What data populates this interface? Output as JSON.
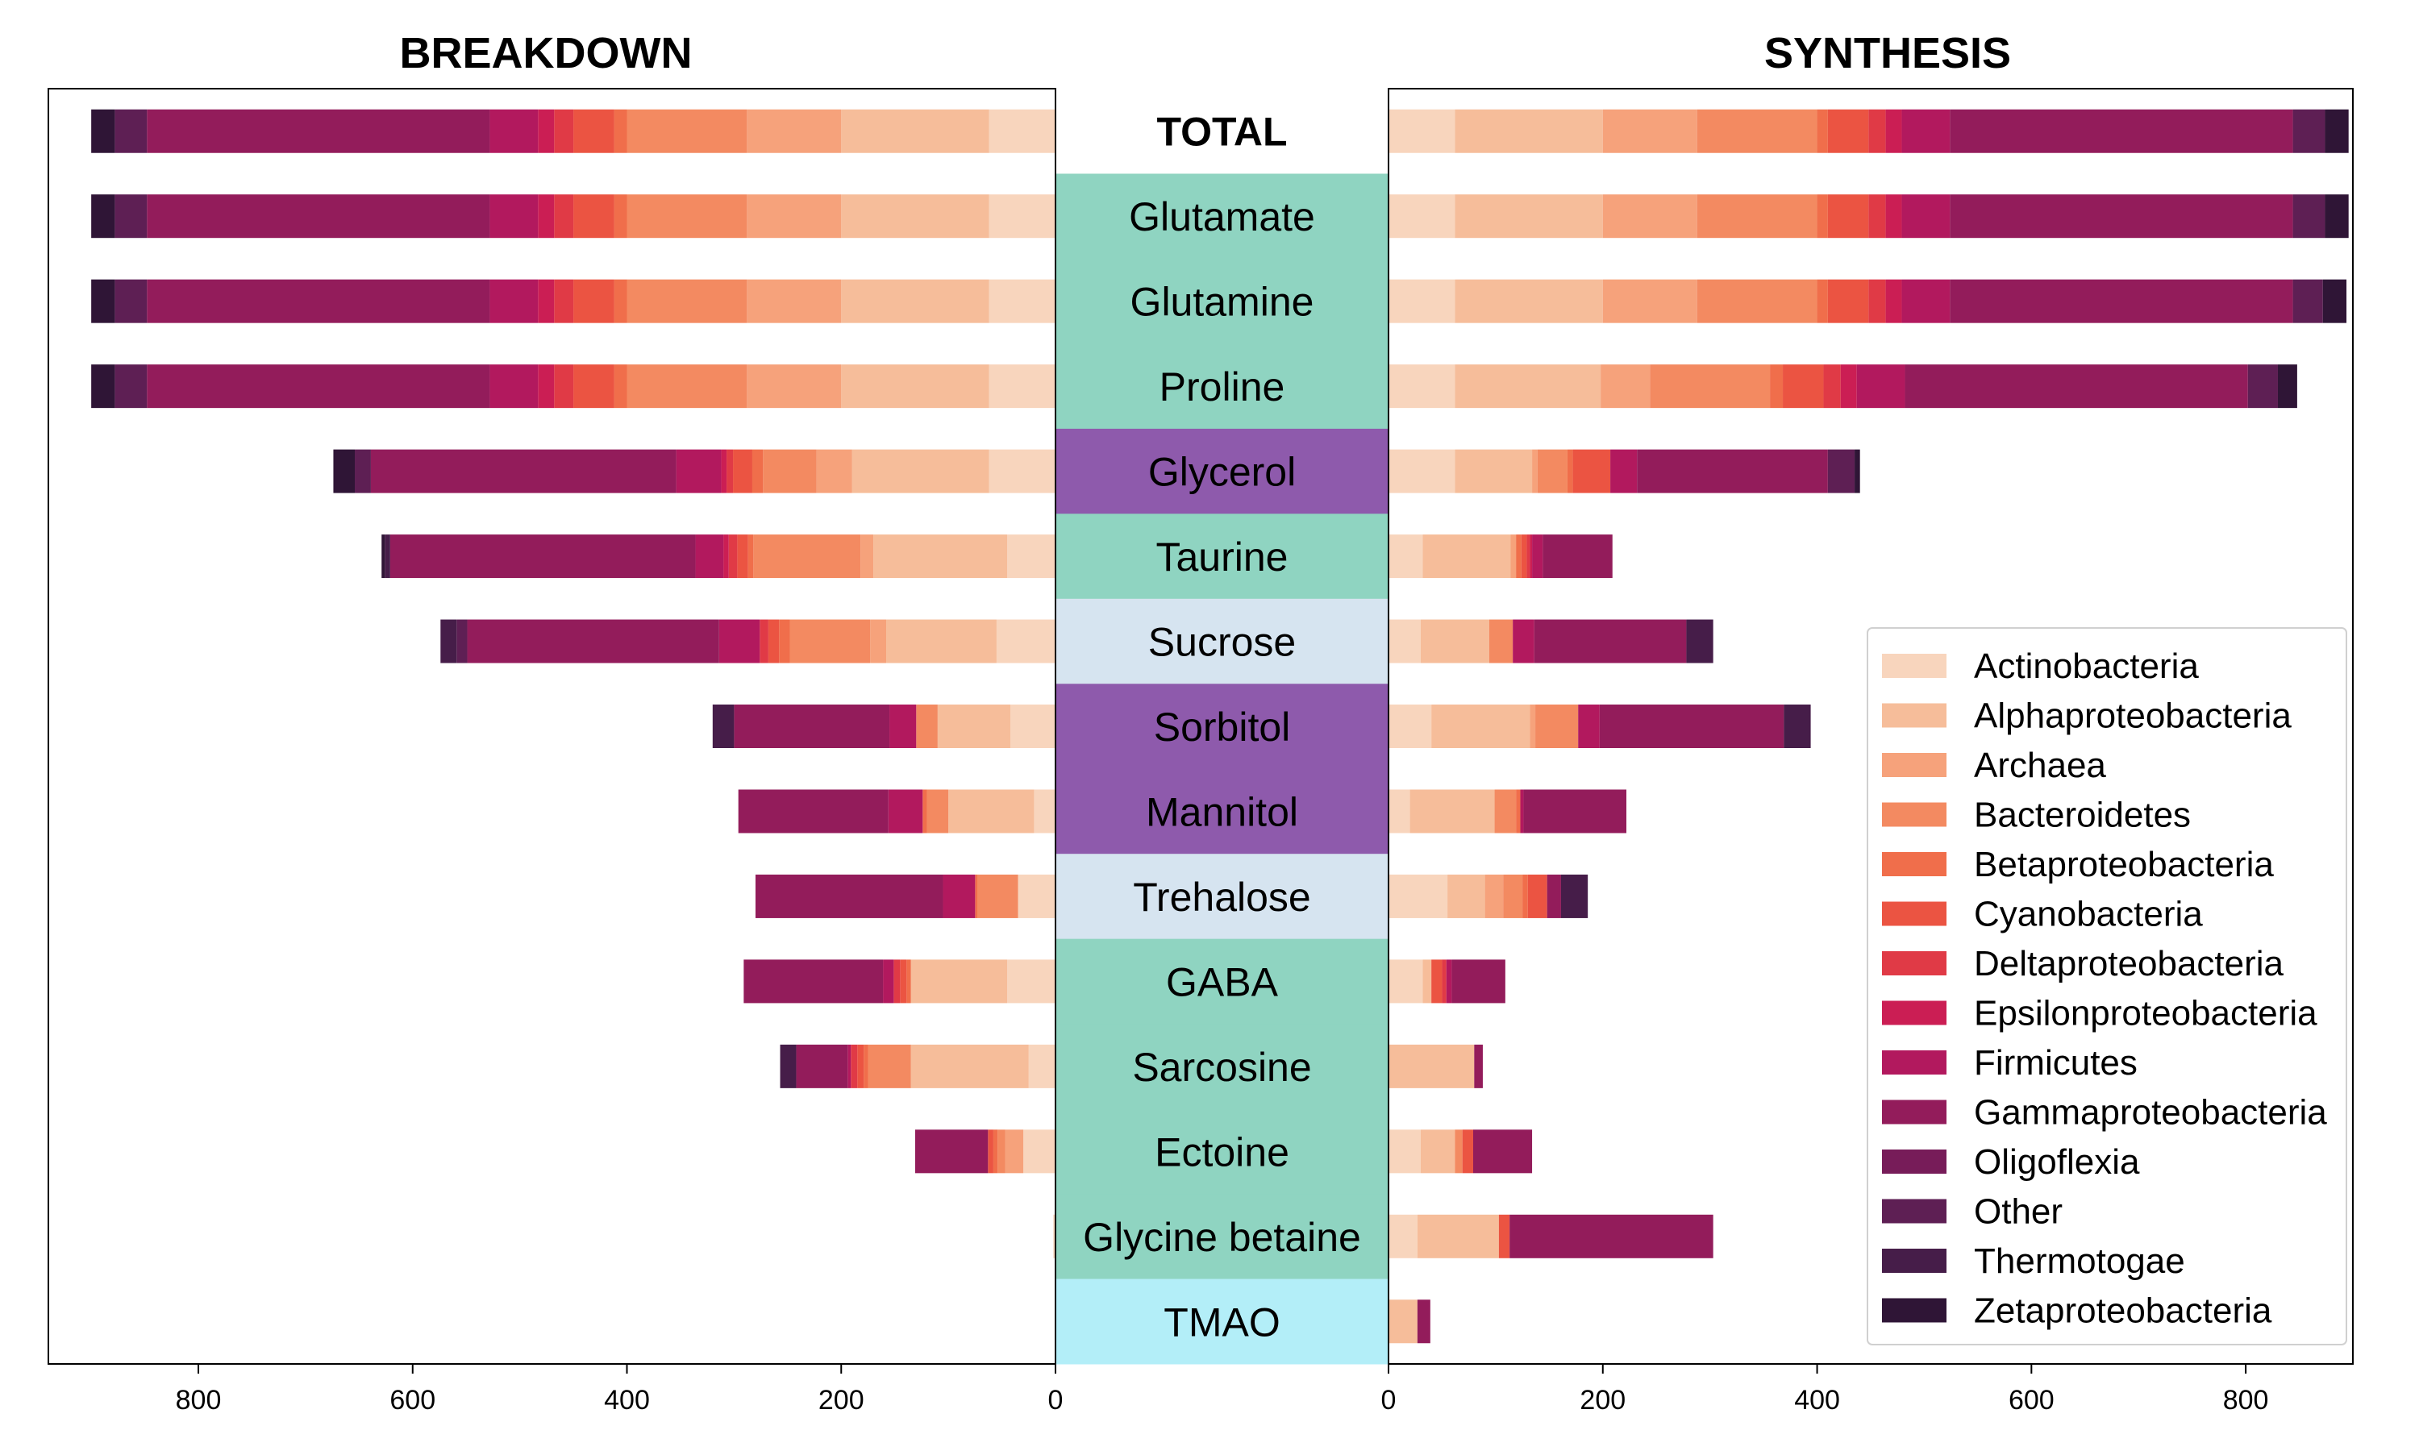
{
  "chart_data": {
    "type": "bar",
    "orientation": "horizontal-butterfly",
    "panels": [
      {
        "key": "breakdown",
        "title": "BREAKDOWN",
        "xlim": [
          940,
          0
        ],
        "xticks": [
          800,
          600,
          400,
          200,
          0
        ]
      },
      {
        "key": "synthesis",
        "title": "SYNTHESIS",
        "xlim": [
          0,
          900
        ],
        "xticks": [
          0,
          200,
          400,
          600,
          800
        ]
      }
    ],
    "categories": [
      "TOTAL",
      "Glutamate",
      "Glutamine",
      "Proline",
      "Glycerol",
      "Taurine",
      "Sucrose",
      "Sorbitol",
      "Mannitol",
      "Trehalose",
      "GABA",
      "Sarcosine",
      "Ectoine",
      "Glycine betaine",
      "TMAO"
    ],
    "category_colors": [
      "#ffffff",
      "#8fd4c1",
      "#8fd4c1",
      "#8fd4c1",
      "#8e5aac",
      "#8fd4c1",
      "#d6e4f0",
      "#8e5aac",
      "#8e5aac",
      "#d6e4f0",
      "#8fd4c1",
      "#8fd4c1",
      "#8fd4c1",
      "#8fd4c1",
      "#b3eef8"
    ],
    "taxa": [
      "Actinobacteria",
      "Alphaproteobacteria",
      "Archaea",
      "Bacteroidetes",
      "Betaproteobacteria",
      "Cyanobacteria",
      "Deltaproteobacteria",
      "Epsilonproteobacteria",
      "Firmicutes",
      "Gammaproteobacteria",
      "Oligoflexia",
      "Other",
      "Thermotogae",
      "Zetaproteobacteria"
    ],
    "taxa_colors": [
      "#f8d5bd",
      "#f6bd9a",
      "#f6a27b",
      "#f38a61",
      "#f06e4b",
      "#eb5442",
      "#e03a46",
      "#cb1e54",
      "#b2195e",
      "#931c5b",
      "#771c59",
      "#5e1f54",
      "#461d49",
      "#2f1536"
    ],
    "legend_position": "lower-right",
    "series": [
      {
        "name": "Actinobacteria",
        "breakdown": [
          62,
          62,
          62,
          62,
          62,
          45,
          55,
          42,
          20,
          35,
          45,
          25,
          30,
          2,
          0
        ],
        "synthesis": [
          62,
          62,
          62,
          62,
          62,
          32,
          30,
          40,
          20,
          55,
          32,
          0,
          30,
          27,
          0
        ]
      },
      {
        "name": "Alphaproteobacteria",
        "breakdown": [
          138,
          138,
          138,
          138,
          128,
          125,
          103,
          68,
          80,
          0,
          90,
          110,
          0,
          0,
          0
        ],
        "synthesis": [
          138,
          138,
          138,
          136,
          72,
          82,
          64,
          92,
          79,
          35,
          8,
          80,
          32,
          76,
          27
        ]
      },
      {
        "name": "Archaea",
        "breakdown": [
          88,
          88,
          88,
          88,
          33,
          12,
          15,
          0,
          0,
          0,
          0,
          0,
          17,
          0,
          0
        ],
        "synthesis": [
          88,
          88,
          88,
          46,
          5,
          5,
          0,
          5,
          0,
          17,
          0,
          0,
          0,
          0,
          0
        ]
      },
      {
        "name": "Bacteroidetes",
        "breakdown": [
          112,
          112,
          112,
          112,
          50,
          100,
          75,
          20,
          20,
          38,
          0,
          40,
          7,
          0,
          0
        ],
        "synthesis": [
          112,
          112,
          112,
          112,
          28,
          0,
          22,
          40,
          20,
          18,
          0,
          0,
          7,
          0,
          0
        ]
      },
      {
        "name": "Betaproteobacteria",
        "breakdown": [
          12,
          12,
          12,
          12,
          10,
          5,
          10,
          0,
          4,
          2,
          4,
          4,
          4,
          0,
          0
        ],
        "synthesis": [
          10,
          10,
          10,
          12,
          5,
          5,
          0,
          0,
          4,
          5,
          0,
          0,
          0,
          0,
          0
        ]
      },
      {
        "name": "Cyanobacteria",
        "breakdown": [
          38,
          38,
          38,
          38,
          18,
          10,
          10,
          0,
          0,
          0,
          6,
          6,
          5,
          0,
          0
        ],
        "synthesis": [
          38,
          38,
          38,
          38,
          35,
          5,
          0,
          0,
          0,
          18,
          10,
          0,
          10,
          10,
          0
        ]
      },
      {
        "name": "Deltaproteobacteria",
        "breakdown": [
          18,
          18,
          18,
          18,
          6,
          8,
          8,
          0,
          0,
          0,
          6,
          6,
          0,
          0,
          0
        ],
        "synthesis": [
          16,
          16,
          16,
          16,
          0,
          3,
          0,
          0,
          0,
          0,
          4,
          0,
          0,
          0,
          0
        ]
      },
      {
        "name": "Epsilonproteobacteria",
        "breakdown": [
          15,
          15,
          15,
          15,
          5,
          5,
          0,
          0,
          0,
          0,
          0,
          0,
          0,
          0,
          0
        ],
        "synthesis": [
          15,
          15,
          15,
          15,
          0,
          2,
          0,
          0,
          0,
          0,
          0,
          0,
          0,
          0,
          0
        ]
      },
      {
        "name": "Firmicutes",
        "breakdown": [
          45,
          45,
          45,
          45,
          42,
          26,
          38,
          25,
          32,
          30,
          10,
          3,
          0,
          0,
          0
        ],
        "synthesis": [
          45,
          45,
          45,
          45,
          25,
          10,
          20,
          20,
          3,
          0,
          5,
          0,
          0,
          0,
          0
        ]
      },
      {
        "name": "Gammaproteobacteria",
        "breakdown": [
          320,
          320,
          320,
          320,
          285,
          285,
          235,
          145,
          140,
          175,
          130,
          48,
          68,
          0,
          0
        ],
        "synthesis": [
          320,
          320,
          320,
          320,
          178,
          65,
          142,
          172,
          96,
          13,
          50,
          8,
          55,
          190,
          12
        ]
      },
      {
        "name": "Oligoflexia",
        "breakdown": [
          0,
          0,
          0,
          0,
          0,
          0,
          0,
          0,
          0,
          0,
          0,
          0,
          0,
          0,
          0
        ],
        "synthesis": [
          0,
          0,
          0,
          0,
          0,
          0,
          0,
          0,
          0,
          0,
          0,
          0,
          0,
          0,
          0
        ]
      },
      {
        "name": "Other",
        "breakdown": [
          30,
          30,
          30,
          30,
          15,
          0,
          10,
          0,
          0,
          0,
          0,
          0,
          0,
          0,
          0
        ],
        "synthesis": [
          30,
          30,
          28,
          28,
          25,
          0,
          0,
          0,
          0,
          0,
          0,
          0,
          0,
          0,
          0
        ]
      },
      {
        "name": "Thermotogae",
        "breakdown": [
          0,
          0,
          0,
          0,
          0,
          5,
          15,
          20,
          0,
          0,
          0,
          15,
          0,
          0,
          0
        ],
        "synthesis": [
          0,
          0,
          0,
          0,
          0,
          0,
          25,
          25,
          0,
          25,
          0,
          0,
          0,
          0,
          0
        ]
      },
      {
        "name": "Zetaproteobacteria",
        "breakdown": [
          22,
          22,
          22,
          22,
          20,
          3,
          0,
          0,
          0,
          0,
          0,
          0,
          0,
          0,
          0
        ],
        "synthesis": [
          22,
          22,
          22,
          18,
          5,
          0,
          0,
          0,
          0,
          0,
          0,
          0,
          0,
          0,
          0
        ]
      }
    ]
  }
}
